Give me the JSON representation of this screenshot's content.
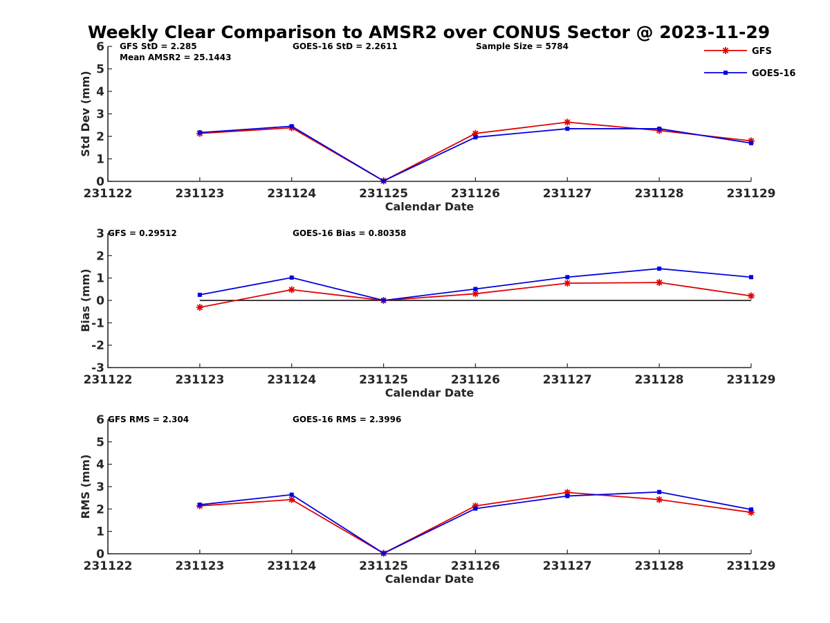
{
  "title": "Weekly Clear Comparison to AMSR2 over CONUS Sector @ 2023-11-29",
  "legend": [
    {
      "label": "GFS",
      "color": "#e00000",
      "marker": "asterisk"
    },
    {
      "label": "GOES-16",
      "color": "#0000e0",
      "marker": "square"
    }
  ],
  "chart_data": [
    {
      "type": "line",
      "xlabel": "Calendar Date",
      "ylabel": "Std Dev (mm)",
      "xticks": [
        "231122",
        "231123",
        "231124",
        "231125",
        "231126",
        "231127",
        "231128",
        "231129"
      ],
      "ylim": [
        0,
        6
      ],
      "yticks": [
        0,
        1,
        2,
        3,
        4,
        5,
        6
      ],
      "x": [
        "231123",
        "231124",
        "231125",
        "231126",
        "231127",
        "231128",
        "231129"
      ],
      "zero_line": false,
      "annotations": [
        {
          "text": "GFS StD = 2.285"
        },
        {
          "text": "GOES-16 StD = 2.2611"
        },
        {
          "text": "Sample Size = 5784"
        },
        {
          "text": "Mean AMSR2 = 25.1443"
        }
      ],
      "series": [
        {
          "name": "GFS",
          "color": "#e00000",
          "values": [
            2.13,
            2.38,
            0.02,
            2.13,
            2.63,
            2.26,
            1.8
          ]
        },
        {
          "name": "GOES-16",
          "color": "#0000e0",
          "values": [
            2.17,
            2.45,
            0.02,
            1.96,
            2.34,
            2.34,
            1.7
          ]
        }
      ]
    },
    {
      "type": "line",
      "xlabel": "Calendar Date",
      "ylabel": "Bias (mm)",
      "xticks": [
        "231122",
        "231123",
        "231124",
        "231125",
        "231126",
        "231127",
        "231128",
        "231129"
      ],
      "ylim": [
        -3,
        3
      ],
      "yticks": [
        -3,
        -2,
        -1,
        0,
        1,
        2,
        3
      ],
      "x": [
        "231123",
        "231124",
        "231125",
        "231126",
        "231127",
        "231128",
        "231129"
      ],
      "zero_line": true,
      "annotations": [
        {
          "text": "GFS = 0.29512"
        },
        {
          "text": "GOES-16 Bias  = 0.80358"
        }
      ],
      "series": [
        {
          "name": "GFS",
          "color": "#e00000",
          "values": [
            -0.31,
            0.48,
            0.0,
            0.3,
            0.77,
            0.8,
            0.2
          ]
        },
        {
          "name": "GOES-16",
          "color": "#0000e0",
          "values": [
            0.25,
            1.02,
            0.0,
            0.51,
            1.04,
            1.42,
            1.04
          ]
        }
      ]
    },
    {
      "type": "line",
      "xlabel": "Calendar Date",
      "ylabel": "RMS (mm)",
      "xticks": [
        "231122",
        "231123",
        "231124",
        "231125",
        "231126",
        "231127",
        "231128",
        "231129"
      ],
      "ylim": [
        0,
        6
      ],
      "yticks": [
        0,
        1,
        2,
        3,
        4,
        5,
        6
      ],
      "x": [
        "231123",
        "231124",
        "231125",
        "231126",
        "231127",
        "231128",
        "231129"
      ],
      "zero_line": false,
      "annotations": [
        {
          "text": "GFS RMS = 2.304"
        },
        {
          "text": "GOES-16 RMS = 2.3996"
        }
      ],
      "series": [
        {
          "name": "GFS",
          "color": "#e00000",
          "values": [
            2.14,
            2.42,
            0.02,
            2.14,
            2.74,
            2.42,
            1.85
          ]
        },
        {
          "name": "GOES-16",
          "color": "#0000e0",
          "values": [
            2.19,
            2.64,
            0.02,
            2.02,
            2.58,
            2.76,
            1.98
          ]
        }
      ]
    }
  ]
}
